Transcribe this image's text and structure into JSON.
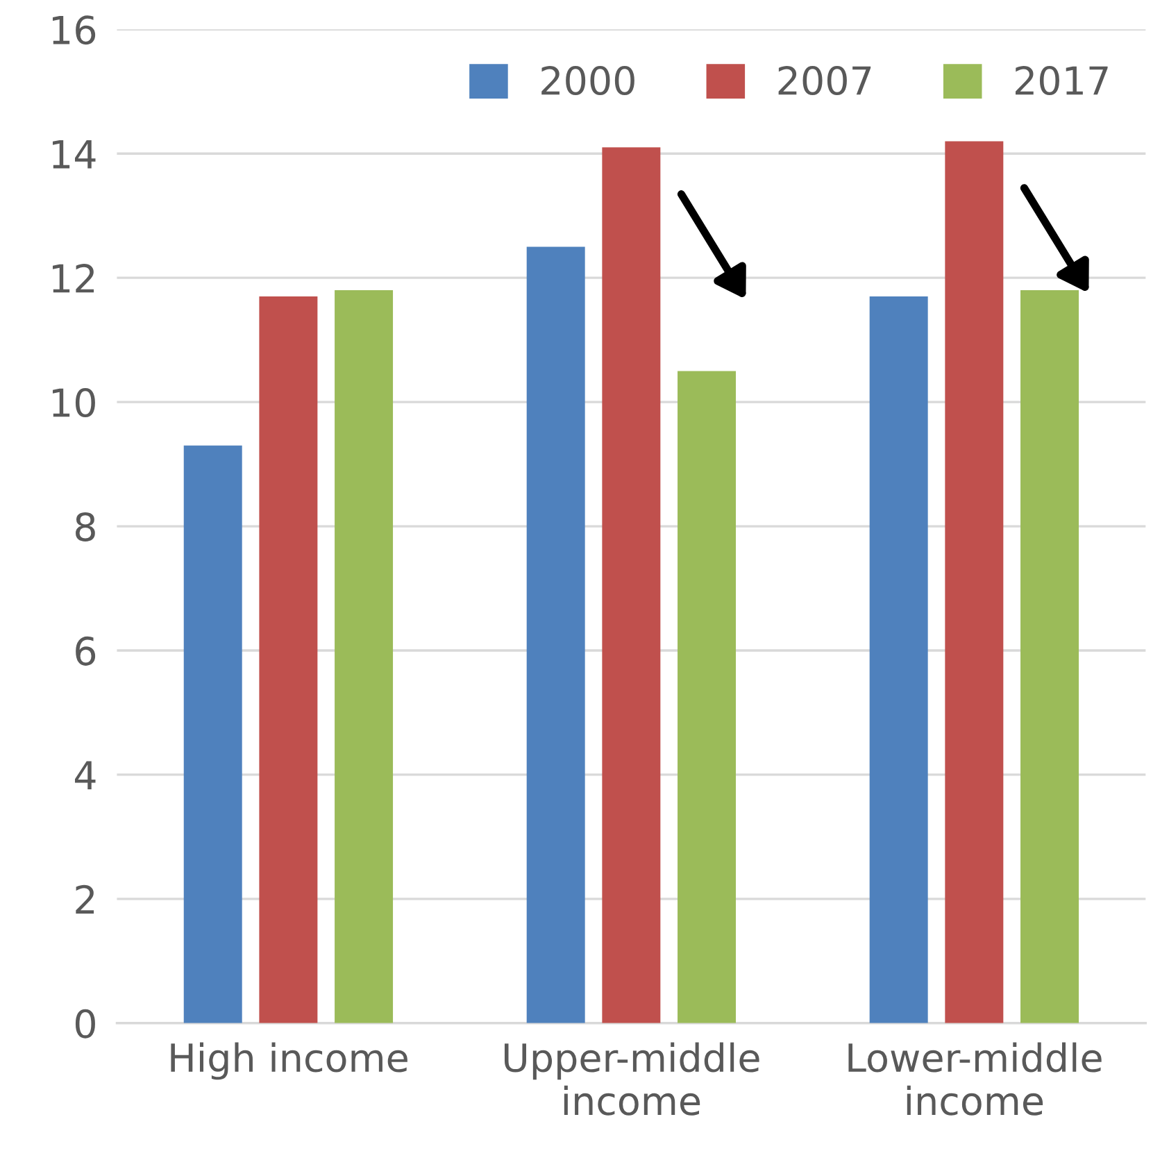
{
  "chart_data": {
    "type": "bar",
    "categories": [
      "High income",
      "Upper-middle\nincome",
      "Lower-middle\nincome"
    ],
    "series": [
      {
        "name": "2000",
        "color": "#4f81bd",
        "values": [
          9.3,
          12.5,
          11.7
        ]
      },
      {
        "name": "2007",
        "color": "#c0504d",
        "values": [
          11.7,
          14.1,
          14.2
        ]
      },
      {
        "name": "2017",
        "color": "#9bbb59",
        "values": [
          11.8,
          10.5,
          11.8
        ]
      }
    ],
    "ylim": [
      0,
      16
    ],
    "yticks": [
      0,
      2,
      4,
      6,
      8,
      10,
      12,
      14,
      16
    ],
    "grid": "y",
    "legend": "top right"
  }
}
